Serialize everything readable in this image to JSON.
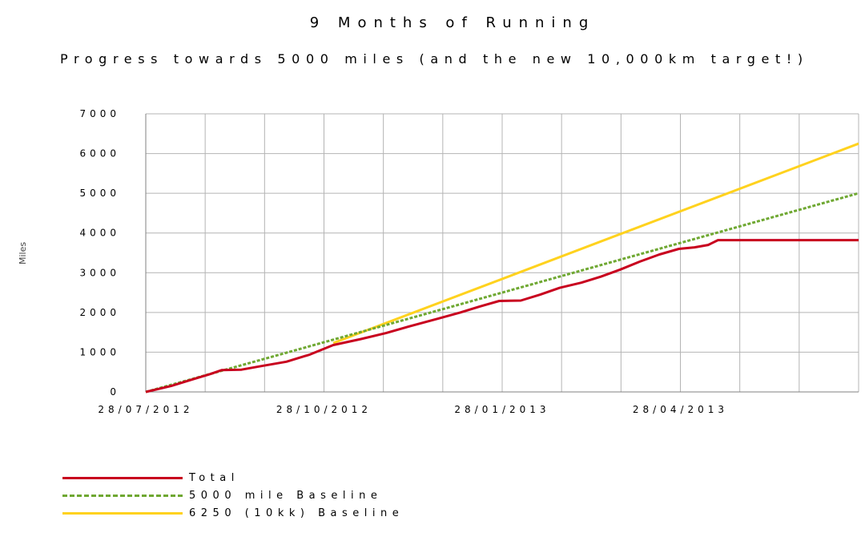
{
  "chart_data": {
    "type": "line",
    "title": "9 Months of Running",
    "subtitle": "Progress towards 5000 miles (and the new 10,000km target!)",
    "ylabel": "Miles",
    "xlabel": "",
    "ylim": [
      0,
      7000
    ],
    "yticks": [
      "0",
      "1000",
      "2000",
      "3000",
      "4000",
      "5000",
      "6000",
      "7000"
    ],
    "xtick_labels": [
      "28/07/2012",
      "28/10/2012",
      "28/01/2013",
      "28/04/2013"
    ],
    "x_axis_start": "2012-07-28",
    "x_axis_end": "2013-07-28",
    "grid": true,
    "legend_position": "bottom-left",
    "series": [
      {
        "name": "Total",
        "color": "#c8001e",
        "style": "solid",
        "points": [
          [
            "2012-07-28",
            0
          ],
          [
            "2012-08-10",
            150
          ],
          [
            "2012-08-20",
            300
          ],
          [
            "2012-08-30",
            450
          ],
          [
            "2012-09-05",
            550
          ],
          [
            "2012-09-15",
            560
          ],
          [
            "2012-09-25",
            650
          ],
          [
            "2012-10-08",
            760
          ],
          [
            "2012-10-20",
            940
          ],
          [
            "2012-11-01",
            1180
          ],
          [
            "2012-11-15",
            1330
          ],
          [
            "2012-11-28",
            1480
          ],
          [
            "2012-12-10",
            1650
          ],
          [
            "2012-12-25",
            1850
          ],
          [
            "2013-01-05",
            2000
          ],
          [
            "2013-01-15",
            2150
          ],
          [
            "2013-01-25",
            2290
          ],
          [
            "2013-02-05",
            2300
          ],
          [
            "2013-02-15",
            2450
          ],
          [
            "2013-02-25",
            2620
          ],
          [
            "2013-03-08",
            2750
          ],
          [
            "2013-03-18",
            2900
          ],
          [
            "2013-03-28",
            3080
          ],
          [
            "2013-04-07",
            3280
          ],
          [
            "2013-04-17",
            3460
          ],
          [
            "2013-04-27",
            3600
          ],
          [
            "2013-05-05",
            3640
          ],
          [
            "2013-05-12",
            3700
          ],
          [
            "2013-05-17",
            3820
          ],
          [
            "2013-07-28",
            3820
          ]
        ]
      },
      {
        "name": "5000 mile Baseline",
        "color": "#6fa832",
        "style": "dashed",
        "points": [
          [
            "2012-07-28",
            0
          ],
          [
            "2013-07-28",
            5000
          ]
        ]
      },
      {
        "name": "6250 (10kk) Baseline",
        "color": "#ffd21e",
        "style": "solid",
        "points": [
          [
            "2012-11-01",
            1230
          ],
          [
            "2013-07-28",
            6250
          ]
        ]
      }
    ]
  }
}
